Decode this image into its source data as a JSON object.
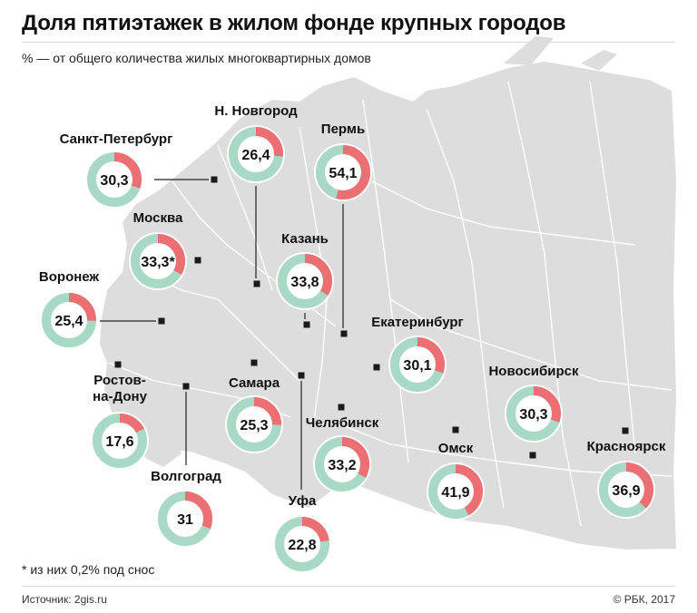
{
  "header": {
    "title": "Доля пятиэтажек в жилом фонде крупных городов",
    "subtitle": "% — от общего количества жилых многоквартирных домов"
  },
  "footer": {
    "footnote": "* из них 0,2% под снос",
    "source": "Источник: 2gis.ru",
    "copyright": "© РБК, 2017"
  },
  "colors": {
    "share": "#ec6f74",
    "rest": "#a8d8c6",
    "map": "#dddddd",
    "border": "#ffffff",
    "marker": "#1a1a1a"
  },
  "chart_data": {
    "type": "pie",
    "unit": "%",
    "cities": [
      {
        "name": "Санкт-Петербург",
        "value": 30.3,
        "display": "30,3"
      },
      {
        "name": "Н. Новгород",
        "value": 26.4,
        "display": "26,4"
      },
      {
        "name": "Пермь",
        "value": 54.1,
        "display": "54,1"
      },
      {
        "name": "Москва",
        "value": 33.3,
        "display": "33,3*"
      },
      {
        "name": "Казань",
        "value": 33.8,
        "display": "33,8"
      },
      {
        "name": "Воронеж",
        "value": 25.4,
        "display": "25,4"
      },
      {
        "name": "Екатеринбург",
        "value": 30.1,
        "display": "30,1"
      },
      {
        "name": "Ростов-на-Дону",
        "label_lines": [
          "Ростов-",
          "на-Дону"
        ],
        "value": 17.6,
        "display": "17,6"
      },
      {
        "name": "Самара",
        "value": 25.3,
        "display": "25,3"
      },
      {
        "name": "Новосибирск",
        "value": 30.3,
        "display": "30,3"
      },
      {
        "name": "Челябинск",
        "value": 33.2,
        "display": "33,2"
      },
      {
        "name": "Омск",
        "value": 41.9,
        "display": "41,9"
      },
      {
        "name": "Красноярск",
        "value": 36.9,
        "display": "36,9"
      },
      {
        "name": "Волгоград",
        "value": 31,
        "display": "31"
      },
      {
        "name": "Уфа",
        "value": 22.8,
        "display": "22,8"
      }
    ]
  }
}
